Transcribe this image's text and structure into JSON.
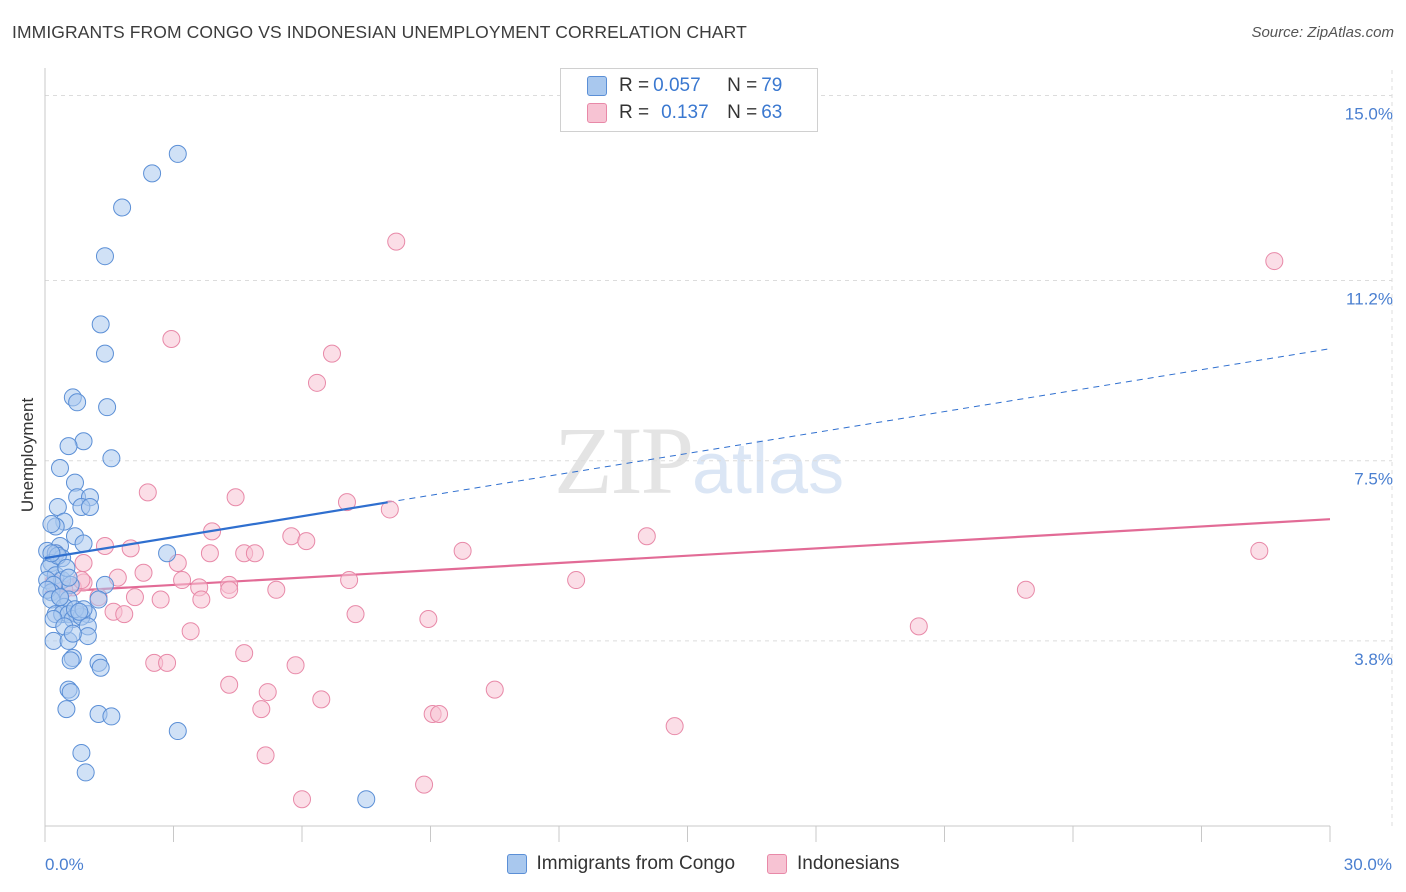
{
  "header": {
    "title": "IMMIGRANTS FROM CONGO VS INDONESIAN UNEMPLOYMENT CORRELATION CHART",
    "source": "Source: ZipAtlas.com"
  },
  "watermark": {
    "zip": "ZIP",
    "atlas": "atlas"
  },
  "legend_top": [
    {
      "r_label": "R = ",
      "r_value": "0.057",
      "n_label": "N = ",
      "n_value": "79"
    },
    {
      "r_label": "R = ",
      "r_value": "0.137",
      "n_label": "N = ",
      "n_value": "63"
    }
  ],
  "legend_bottom": [
    {
      "label": "Immigrants from Congo"
    },
    {
      "label": "Indonesians"
    }
  ],
  "colors": {
    "blue_fill": "#a9c8ee",
    "blue_stroke": "#5b8fd6",
    "blue_line": "#2f6fcf",
    "pink_fill": "#f7c3d3",
    "pink_stroke": "#e889a8",
    "pink_line": "#e26b96",
    "grid": "#dcdcdc",
    "tick_text": "#4a7fd0"
  },
  "chart_data": {
    "type": "scatter",
    "title": "IMMIGRANTS FROM CONGO VS INDONESIAN UNEMPLOYMENT CORRELATION CHART",
    "xlabel": "",
    "ylabel": "Unemployment",
    "xlim": [
      0,
      30
    ],
    "ylim": [
      0,
      15.4
    ],
    "x_tick_labels": [
      {
        "value": 0,
        "label": "0.0%"
      },
      {
        "value": 30,
        "label": "30.0%"
      }
    ],
    "y_tick_labels": [
      {
        "value": 3.8,
        "label": "3.8%"
      },
      {
        "value": 7.5,
        "label": "7.5%"
      },
      {
        "value": 11.2,
        "label": "11.2%"
      },
      {
        "value": 15.0,
        "label": "15.0%"
      }
    ],
    "x_minor_ticks": [
      0,
      3,
      6,
      9,
      12,
      15,
      18,
      21,
      24,
      27,
      30
    ],
    "series": [
      {
        "name": "Immigrants from Congo",
        "R": 0.057,
        "N": 79,
        "trend": {
          "x0": 0,
          "y0": 5.5,
          "x_solid_end": 8,
          "x1": 30,
          "y1": 9.8
        },
        "points": [
          [
            3.1,
            13.8
          ],
          [
            2.5,
            13.4
          ],
          [
            1.8,
            12.7
          ],
          [
            1.4,
            11.7
          ],
          [
            1.3,
            10.3
          ],
          [
            1.4,
            9.7
          ],
          [
            0.65,
            8.8
          ],
          [
            0.75,
            8.7
          ],
          [
            1.45,
            8.6
          ],
          [
            0.9,
            7.9
          ],
          [
            0.55,
            7.8
          ],
          [
            1.55,
            7.55
          ],
          [
            0.35,
            7.35
          ],
          [
            0.7,
            7.05
          ],
          [
            0.75,
            6.75
          ],
          [
            1.05,
            6.75
          ],
          [
            0.3,
            6.55
          ],
          [
            0.85,
            6.55
          ],
          [
            1.05,
            6.55
          ],
          [
            0.45,
            6.25
          ],
          [
            0.25,
            6.15
          ],
          [
            0.15,
            6.2
          ],
          [
            0.7,
            5.95
          ],
          [
            0.9,
            5.8
          ],
          [
            0.35,
            5.75
          ],
          [
            0.05,
            5.65
          ],
          [
            0.25,
            5.6
          ],
          [
            2.85,
            5.6
          ],
          [
            0.15,
            5.4
          ],
          [
            0.4,
            5.5
          ],
          [
            0.1,
            5.3
          ],
          [
            0.25,
            5.15
          ],
          [
            0.4,
            5.05
          ],
          [
            0.05,
            5.05
          ],
          [
            0.2,
            4.95
          ],
          [
            0.6,
            4.95
          ],
          [
            1.4,
            4.95
          ],
          [
            0.15,
            4.8
          ],
          [
            0.35,
            4.7
          ],
          [
            0.05,
            4.85
          ],
          [
            0.55,
            4.65
          ],
          [
            0.15,
            4.65
          ],
          [
            1.25,
            4.65
          ],
          [
            0.45,
            4.5
          ],
          [
            0.25,
            4.35
          ],
          [
            0.4,
            4.35
          ],
          [
            0.55,
            4.35
          ],
          [
            0.75,
            4.35
          ],
          [
            1.0,
            4.35
          ],
          [
            0.65,
            4.25
          ],
          [
            0.85,
            4.3
          ],
          [
            1.0,
            4.1
          ],
          [
            0.2,
            3.8
          ],
          [
            0.55,
            3.8
          ],
          [
            1.0,
            3.9
          ],
          [
            0.65,
            3.45
          ],
          [
            0.6,
            3.4
          ],
          [
            1.25,
            3.35
          ],
          [
            1.3,
            3.25
          ],
          [
            0.55,
            2.8
          ],
          [
            0.6,
            2.75
          ],
          [
            0.5,
            2.4
          ],
          [
            1.25,
            2.3
          ],
          [
            1.55,
            2.25
          ],
          [
            3.1,
            1.95
          ],
          [
            0.85,
            1.5
          ],
          [
            0.95,
            1.1
          ],
          [
            7.5,
            0.55
          ],
          [
            0.3,
            5.55
          ],
          [
            0.5,
            5.3
          ],
          [
            0.7,
            4.45
          ],
          [
            0.9,
            4.45
          ],
          [
            0.2,
            4.25
          ],
          [
            0.45,
            4.1
          ],
          [
            0.65,
            3.95
          ],
          [
            0.35,
            4.7
          ],
          [
            0.55,
            5.1
          ],
          [
            0.15,
            5.6
          ],
          [
            0.8,
            4.4
          ]
        ]
      },
      {
        "name": "Indonesians",
        "R": 0.137,
        "N": 63,
        "trend": {
          "x0": 0,
          "y0": 4.8,
          "x1": 30,
          "y1": 6.3
        },
        "points": [
          [
            8.2,
            12.0
          ],
          [
            28.7,
            11.6
          ],
          [
            2.95,
            10.0
          ],
          [
            6.7,
            9.7
          ],
          [
            6.35,
            9.1
          ],
          [
            2.4,
            6.85
          ],
          [
            4.45,
            6.75
          ],
          [
            7.05,
            6.65
          ],
          [
            8.05,
            6.5
          ],
          [
            3.9,
            6.05
          ],
          [
            14.05,
            5.95
          ],
          [
            5.75,
            5.95
          ],
          [
            6.1,
            5.85
          ],
          [
            1.4,
            5.75
          ],
          [
            2.0,
            5.7
          ],
          [
            9.75,
            5.65
          ],
          [
            28.35,
            5.65
          ],
          [
            3.85,
            5.6
          ],
          [
            4.65,
            5.6
          ],
          [
            4.9,
            5.6
          ],
          [
            0.25,
            5.6
          ],
          [
            3.1,
            5.4
          ],
          [
            0.9,
            5.4
          ],
          [
            2.3,
            5.2
          ],
          [
            1.7,
            5.1
          ],
          [
            3.2,
            5.05
          ],
          [
            7.1,
            5.05
          ],
          [
            12.4,
            5.05
          ],
          [
            0.9,
            5.0
          ],
          [
            4.3,
            4.95
          ],
          [
            3.6,
            4.9
          ],
          [
            0.65,
            4.9
          ],
          [
            4.3,
            4.85
          ],
          [
            5.4,
            4.85
          ],
          [
            22.9,
            4.85
          ],
          [
            1.25,
            4.7
          ],
          [
            2.1,
            4.7
          ],
          [
            2.7,
            4.65
          ],
          [
            3.65,
            4.65
          ],
          [
            1.6,
            4.4
          ],
          [
            1.85,
            4.35
          ],
          [
            7.25,
            4.35
          ],
          [
            8.95,
            4.25
          ],
          [
            20.4,
            4.1
          ],
          [
            3.4,
            4.0
          ],
          [
            0.45,
            4.85
          ],
          [
            2.55,
            3.35
          ],
          [
            2.85,
            3.35
          ],
          [
            4.65,
            3.55
          ],
          [
            5.85,
            3.3
          ],
          [
            4.3,
            2.9
          ],
          [
            5.2,
            2.75
          ],
          [
            10.5,
            2.8
          ],
          [
            6.45,
            2.6
          ],
          [
            5.05,
            2.4
          ],
          [
            9.05,
            2.3
          ],
          [
            9.2,
            2.3
          ],
          [
            14.7,
            2.05
          ],
          [
            5.15,
            1.45
          ],
          [
            8.85,
            0.85
          ],
          [
            6.0,
            0.55
          ],
          [
            0.2,
            5.0
          ],
          [
            0.85,
            5.05
          ]
        ]
      }
    ]
  }
}
